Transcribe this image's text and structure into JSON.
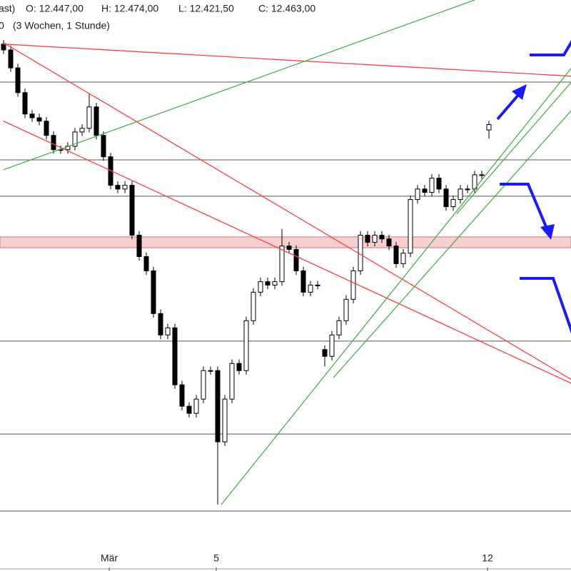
{
  "chart_data": {
    "type": "candlestick",
    "header": [
      "ast)",
      "O: 12.447,00",
      "H: 12.474,00",
      "L: 12.421,50",
      "C: 12.463,00"
    ],
    "subheader": [
      "0",
      "(3 Wochen, 1 Stunde)"
    ],
    "categories": [
      null,
      null,
      null,
      null,
      null,
      null,
      null,
      null,
      null,
      null,
      null,
      null,
      null,
      null,
      null,
      "Mär",
      null,
      null,
      null,
      null,
      null,
      null,
      null,
      null,
      null,
      null,
      null,
      null,
      null,
      null,
      "5",
      null,
      null,
      null,
      null,
      null,
      null,
      null,
      null,
      null,
      null,
      null,
      null,
      null,
      null,
      null,
      null,
      null,
      null,
      null,
      null,
      null,
      null,
      null,
      null,
      null,
      null,
      null,
      null,
      null,
      null,
      null,
      null,
      null,
      null,
      null,
      null,
      null,
      "12"
    ],
    "open": [
      12700,
      12683,
      12630,
      12557,
      12494,
      12483,
      12473,
      12431,
      12389,
      12389,
      12399,
      12441,
      12452,
      12515,
      12431,
      12368,
      12284,
      12273,
      12284,
      12137,
      12074,
      12032,
      11906,
      11843,
      11864,
      11696,
      11633,
      11612,
      11654,
      11738,
      11738,
      11528,
      11654,
      11759,
      11738,
      11885,
      11969,
      12000,
      11990,
      12000,
      12105,
      12095,
      12032,
      11969,
      11990,
      11800,
      11780,
      11843,
      11885,
      11948,
      12032,
      12137,
      12116,
      12137,
      12126,
      12105,
      12053,
      12084,
      12242,
      12273,
      12263,
      12305,
      12273,
      12221,
      12242,
      12273,
      12273,
      12315,
      12447
    ],
    "high": [
      12712,
      12695,
      12642,
      12569,
      12506,
      12495,
      12485,
      12443,
      12401,
      12411,
      12453,
      12464,
      12555,
      12527,
      12443,
      12380,
      12296,
      12296,
      12296,
      12149,
      12086,
      12044,
      11918,
      11876,
      11876,
      11708,
      11645,
      11666,
      11750,
      11750,
      11750,
      11666,
      11771,
      11771,
      11897,
      11981,
      12012,
      12012,
      12012,
      12155,
      12117,
      12107,
      12044,
      12002,
      12002,
      11812,
      11855,
      11897,
      11960,
      12044,
      12149,
      12149,
      12149,
      12149,
      12138,
      12117,
      12096,
      12254,
      12285,
      12285,
      12317,
      12317,
      12285,
      12254,
      12285,
      12285,
      12327,
      12327,
      12474
    ],
    "low": [
      12671,
      12618,
      12545,
      12482,
      12471,
      12461,
      12419,
      12377,
      12377,
      12377,
      12387,
      12429,
      12440,
      12419,
      12356,
      12272,
      12261,
      12261,
      12125,
      12062,
      12020,
      11894,
      11831,
      11831,
      11684,
      11621,
      11600,
      11600,
      11642,
      11726,
      11343,
      11516,
      11642,
      11726,
      11726,
      11873,
      11957,
      11978,
      11978,
      11988,
      12083,
      12020,
      11957,
      11957,
      11978,
      11750,
      11768,
      11831,
      11873,
      11936,
      12020,
      12104,
      12104,
      12114,
      12093,
      12041,
      12041,
      12072,
      12230,
      12251,
      12251,
      12261,
      12209,
      12209,
      12230,
      12261,
      12261,
      12303,
      12421.5
    ],
    "close": [
      12683,
      12630,
      12557,
      12494,
      12483,
      12473,
      12431,
      12389,
      12389,
      12399,
      12441,
      12452,
      12515,
      12431,
      12368,
      12284,
      12273,
      12284,
      12137,
      12074,
      12032,
      11906,
      11843,
      11864,
      11696,
      11633,
      11612,
      11654,
      11738,
      11738,
      11528,
      11654,
      11759,
      11738,
      11885,
      11969,
      12000,
      11990,
      12000,
      12105,
      12095,
      12032,
      11969,
      11990,
      11990,
      11780,
      11843,
      11885,
      11948,
      12032,
      12137,
      12116,
      12137,
      12126,
      12105,
      12053,
      12084,
      12242,
      12273,
      12263,
      12305,
      12273,
      12221,
      12242,
      12273,
      12273,
      12315,
      12315,
      12463
    ],
    "ylim": [
      11200,
      12830
    ],
    "levels": [
      12588,
      12359,
      12252,
      11825,
      11551,
      11324
    ],
    "band": [
      12100,
      12132
    ],
    "band_color": "#f6d0d0",
    "trendlines": [
      {
        "color": "#ff4040",
        "x": [
          0,
          80
        ],
        "y": [
          12700,
          12605
        ]
      },
      {
        "color": "#ff4040",
        "x": [
          0,
          80
        ],
        "y": [
          12704,
          11706
        ]
      },
      {
        "color": "#ff4040",
        "x": [
          0,
          80
        ],
        "y": [
          12473,
          11696
        ]
      },
      {
        "color": "#4caf50",
        "x": [
          0,
          66
        ],
        "y": [
          12330,
          12830
        ]
      },
      {
        "color": "#4caf50",
        "x": [
          30.5,
          80
        ],
        "y": [
          11343,
          12641
        ]
      },
      {
        "color": "#4caf50",
        "x": [
          46.2,
          80
        ],
        "y": [
          11717,
          12515
        ]
      },
      {
        "color": "#4caf50",
        "x": [
          63.5,
          80
        ],
        "y": [
          12200,
          12599
        ]
      }
    ]
  }
}
